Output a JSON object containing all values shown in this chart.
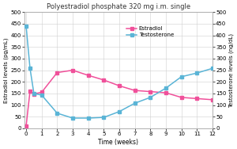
{
  "title": "Polyestradiol phosphate 320 mg i.m. single",
  "xlabel": "Time (weeks)",
  "ylabel_left": "Estradiol levels (pg/mL)",
  "ylabel_right": "Testosterone levels (ng/dL)",
  "estradiol_x": [
    0,
    0.25,
    0.5,
    1,
    2,
    3,
    4,
    5,
    6,
    7,
    8,
    9,
    10,
    11,
    12
  ],
  "estradiol_y": [
    10,
    160,
    148,
    155,
    240,
    250,
    228,
    208,
    183,
    163,
    158,
    153,
    133,
    128,
    123
  ],
  "testosterone_x": [
    0,
    0.25,
    0.5,
    1,
    2,
    3,
    4,
    5,
    6,
    7,
    8,
    9,
    10,
    11,
    12
  ],
  "testosterone_y": [
    440,
    258,
    150,
    143,
    65,
    44,
    44,
    47,
    72,
    108,
    133,
    173,
    222,
    238,
    258
  ],
  "estradiol_color": "#f0509a",
  "testosterone_color": "#5ab4d6",
  "xlim": [
    -0.1,
    12
  ],
  "ylim_left": [
    0,
    500
  ],
  "ylim_right": [
    0,
    500
  ],
  "xticks": [
    0,
    1,
    2,
    3,
    4,
    5,
    6,
    7,
    8,
    9,
    10,
    11,
    12
  ],
  "yticks": [
    0,
    50,
    100,
    150,
    200,
    250,
    300,
    350,
    400,
    450,
    500
  ],
  "legend_estradiol": "Estradiol",
  "legend_testosterone": "Testosterone",
  "background_color": "#ffffff",
  "grid_color": "#d0d0d0"
}
